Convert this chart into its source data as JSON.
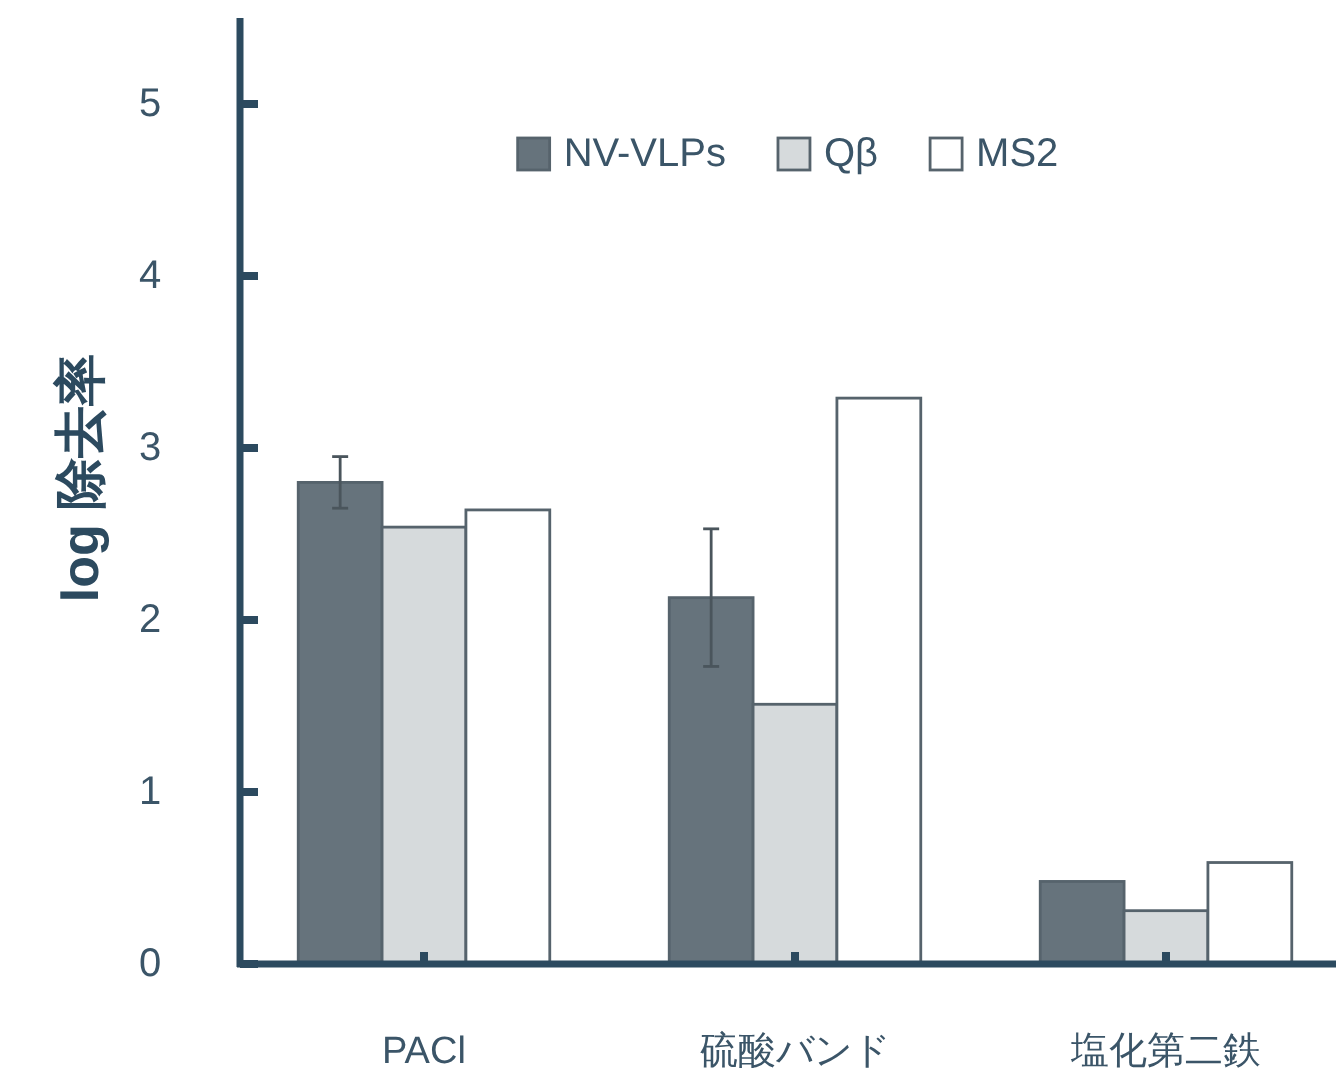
{
  "chart_data": {
    "type": "bar",
    "ylabel": "log 除去率",
    "categories": [
      "PACl",
      "硫酸バンド",
      "塩化第二鉄"
    ],
    "series": [
      {
        "name": "NV-VLPs",
        "color": "#66737c",
        "values": [
          2.8,
          2.13,
          0.48
        ],
        "errors": [
          0.15,
          0.4,
          null
        ]
      },
      {
        "name": "Qβ",
        "color": "#d6dadc",
        "values": [
          2.54,
          1.51,
          0.31
        ]
      },
      {
        "name": "MS2",
        "color": "#ffffff",
        "values": [
          2.64,
          3.29,
          0.59
        ]
      }
    ],
    "ylim": [
      0,
      5.5
    ],
    "yticks": [
      0,
      1,
      2,
      3,
      4,
      5
    ],
    "legend": "top",
    "grid": false
  }
}
